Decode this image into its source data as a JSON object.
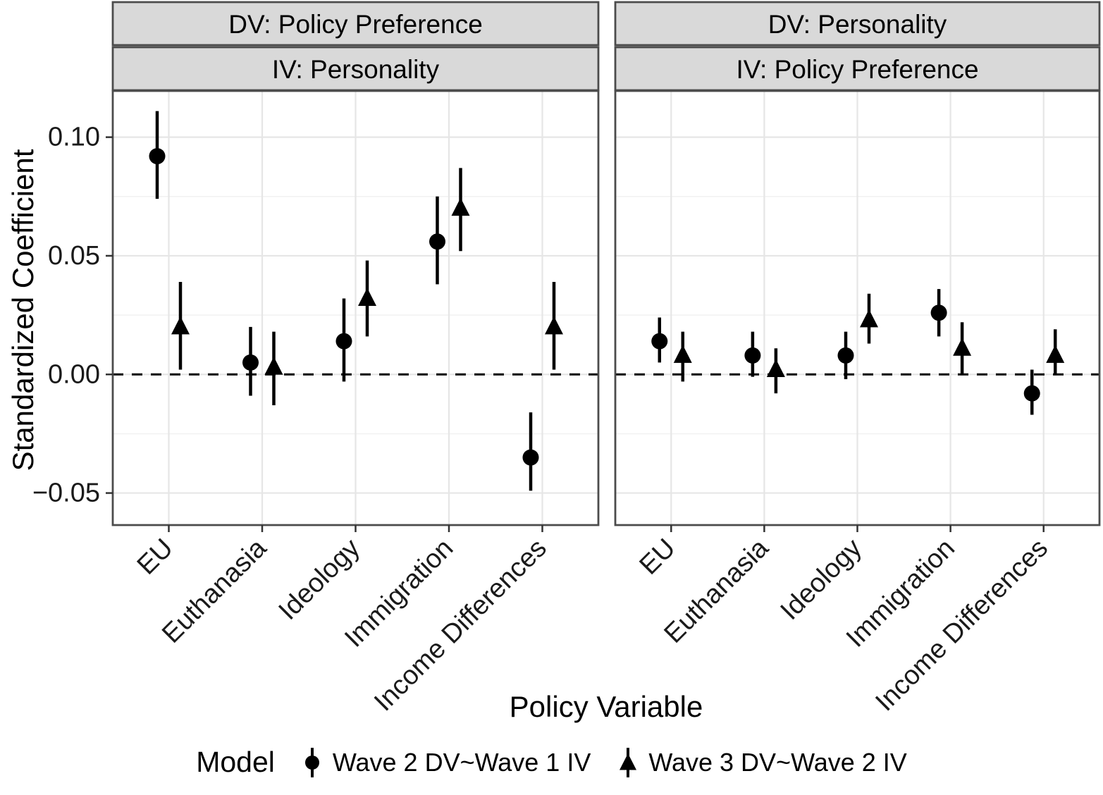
{
  "chart_data": {
    "type": "pointrange",
    "x_axis": {
      "title": "Policy Variable",
      "categories": [
        "EU",
        "Euthanasia",
        "Ideology",
        "Immigration",
        "Income Differences"
      ]
    },
    "y_axis": {
      "title": "Standardized Coefficient",
      "ticks": [
        0.1,
        0.05,
        0.0,
        -0.05
      ],
      "tick_labels": [
        "0.10",
        "0.05",
        "0.00",
        "−0.05"
      ],
      "minor_ticks": [
        0.075,
        0.025,
        -0.025
      ],
      "range": [
        -0.0635,
        0.1195
      ]
    },
    "zero_line": {
      "y": 0,
      "style": "dashed"
    },
    "legend": {
      "title": "Model",
      "items": [
        {
          "label": "Wave 2 DV~Wave 1 IV",
          "shape": "circle"
        },
        {
          "label": "Wave 3 DV~Wave 2 IV",
          "shape": "triangle"
        }
      ]
    },
    "panels": [
      {
        "strip_dv": "DV: Policy Preference",
        "strip_iv": "IV: Personality",
        "series": [
          {
            "model": "Wave 2 DV~Wave 1 IV",
            "shape": "circle",
            "points": [
              {
                "category": "EU",
                "estimate": 0.092,
                "ci_low": 0.074,
                "ci_high": 0.111
              },
              {
                "category": "Euthanasia",
                "estimate": 0.005,
                "ci_low": -0.009,
                "ci_high": 0.02
              },
              {
                "category": "Ideology",
                "estimate": 0.014,
                "ci_low": -0.003,
                "ci_high": 0.032
              },
              {
                "category": "Immigration",
                "estimate": 0.056,
                "ci_low": 0.038,
                "ci_high": 0.075
              },
              {
                "category": "Income Differences",
                "estimate": -0.035,
                "ci_low": -0.049,
                "ci_high": -0.016
              }
            ]
          },
          {
            "model": "Wave 3 DV~Wave 2 IV",
            "shape": "triangle",
            "points": [
              {
                "category": "EU",
                "estimate": 0.02,
                "ci_low": 0.002,
                "ci_high": 0.039
              },
              {
                "category": "Euthanasia",
                "estimate": 0.003,
                "ci_low": -0.013,
                "ci_high": 0.018
              },
              {
                "category": "Ideology",
                "estimate": 0.032,
                "ci_low": 0.016,
                "ci_high": 0.048
              },
              {
                "category": "Immigration",
                "estimate": 0.07,
                "ci_low": 0.052,
                "ci_high": 0.087
              },
              {
                "category": "Income Differences",
                "estimate": 0.02,
                "ci_low": 0.002,
                "ci_high": 0.039
              }
            ]
          }
        ]
      },
      {
        "strip_dv": "DV: Personality",
        "strip_iv": "IV: Policy Preference",
        "series": [
          {
            "model": "Wave 2 DV~Wave 1 IV",
            "shape": "circle",
            "points": [
              {
                "category": "EU",
                "estimate": 0.014,
                "ci_low": 0.005,
                "ci_high": 0.024
              },
              {
                "category": "Euthanasia",
                "estimate": 0.008,
                "ci_low": -0.001,
                "ci_high": 0.018
              },
              {
                "category": "Ideology",
                "estimate": 0.008,
                "ci_low": -0.002,
                "ci_high": 0.018
              },
              {
                "category": "Immigration",
                "estimate": 0.026,
                "ci_low": 0.016,
                "ci_high": 0.036
              },
              {
                "category": "Income Differences",
                "estimate": -0.008,
                "ci_low": -0.017,
                "ci_high": 0.002
              }
            ]
          },
          {
            "model": "Wave 3 DV~Wave 2 IV",
            "shape": "triangle",
            "points": [
              {
                "category": "EU",
                "estimate": 0.008,
                "ci_low": -0.003,
                "ci_high": 0.018
              },
              {
                "category": "Euthanasia",
                "estimate": 0.002,
                "ci_low": -0.008,
                "ci_high": 0.011
              },
              {
                "category": "Ideology",
                "estimate": 0.023,
                "ci_low": 0.013,
                "ci_high": 0.034
              },
              {
                "category": "Immigration",
                "estimate": 0.011,
                "ci_low": 0.0,
                "ci_high": 0.022
              },
              {
                "category": "Income Differences",
                "estimate": 0.008,
                "ci_low": 0.0,
                "ci_high": 0.019
              }
            ]
          }
        ]
      }
    ],
    "colors": {
      "points": "#000000",
      "strip_background": "#d9d9d9",
      "panel_border": "#4c4c4c",
      "grid_major": "#e6e6e6",
      "grid_minor": "#f2f2f2",
      "tick_text": "#1a1a1a"
    }
  }
}
